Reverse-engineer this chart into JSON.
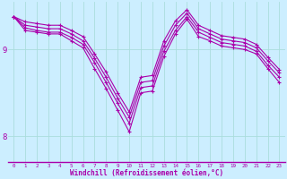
{
  "background_color": "#cceeff",
  "grid_color": "#aadddd",
  "line_color": "#aa00aa",
  "xlabel": "Windchill (Refroidissement éolien,°C)",
  "xlabel_color": "#aa00aa",
  "ylabel_ticks": [
    8,
    9
  ],
  "xlim": [
    -0.5,
    23.5
  ],
  "ylim": [
    7.7,
    9.55
  ],
  "figsize": [
    3.2,
    2.0
  ],
  "dpi": 100,
  "series": [
    {
      "x": [
        0,
        1,
        2,
        3,
        4,
        5,
        6,
        7,
        8,
        9,
        10,
        11,
        12,
        13,
        14,
        15,
        16,
        17,
        18,
        19,
        20,
        21,
        22,
        23
      ],
      "y": [
        9.38,
        9.22,
        9.2,
        9.18,
        9.18,
        9.1,
        9.02,
        8.78,
        8.55,
        8.3,
        8.05,
        8.5,
        8.52,
        8.92,
        9.18,
        9.35,
        9.15,
        9.1,
        9.04,
        9.02,
        9.0,
        8.95,
        8.78,
        8.62
      ]
    },
    {
      "x": [
        0,
        1,
        2,
        3,
        4,
        5,
        6,
        7,
        8,
        9,
        10,
        11,
        12,
        13,
        14,
        15,
        16,
        17,
        18,
        19,
        20,
        21,
        22,
        23
      ],
      "y": [
        9.38,
        9.25,
        9.22,
        9.2,
        9.2,
        9.14,
        9.06,
        8.85,
        8.62,
        8.38,
        8.15,
        8.56,
        8.58,
        8.98,
        9.22,
        9.38,
        9.2,
        9.14,
        9.08,
        9.06,
        9.04,
        8.98,
        8.82,
        8.68
      ]
    },
    {
      "x": [
        0,
        1,
        2,
        3,
        4,
        5,
        6,
        7,
        8,
        9,
        10,
        11,
        12,
        13,
        14,
        15,
        16,
        17,
        18,
        19,
        20,
        21,
        22,
        23
      ],
      "y": [
        9.38,
        9.28,
        9.26,
        9.24,
        9.24,
        9.18,
        9.1,
        8.9,
        8.68,
        8.44,
        8.22,
        8.62,
        8.64,
        9.04,
        9.28,
        9.42,
        9.24,
        9.18,
        9.12,
        9.1,
        9.08,
        9.02,
        8.87,
        8.73
      ]
    },
    {
      "x": [
        0,
        1,
        2,
        3,
        4,
        5,
        6,
        7,
        8,
        9,
        10,
        11,
        12,
        13,
        14,
        15,
        16,
        17,
        18,
        19,
        20,
        21,
        22,
        23
      ],
      "y": [
        9.38,
        9.32,
        9.3,
        9.28,
        9.28,
        9.22,
        9.15,
        8.95,
        8.74,
        8.5,
        8.28,
        8.68,
        8.7,
        9.1,
        9.33,
        9.46,
        9.28,
        9.22,
        9.16,
        9.14,
        9.12,
        9.06,
        8.91,
        8.77
      ]
    }
  ]
}
